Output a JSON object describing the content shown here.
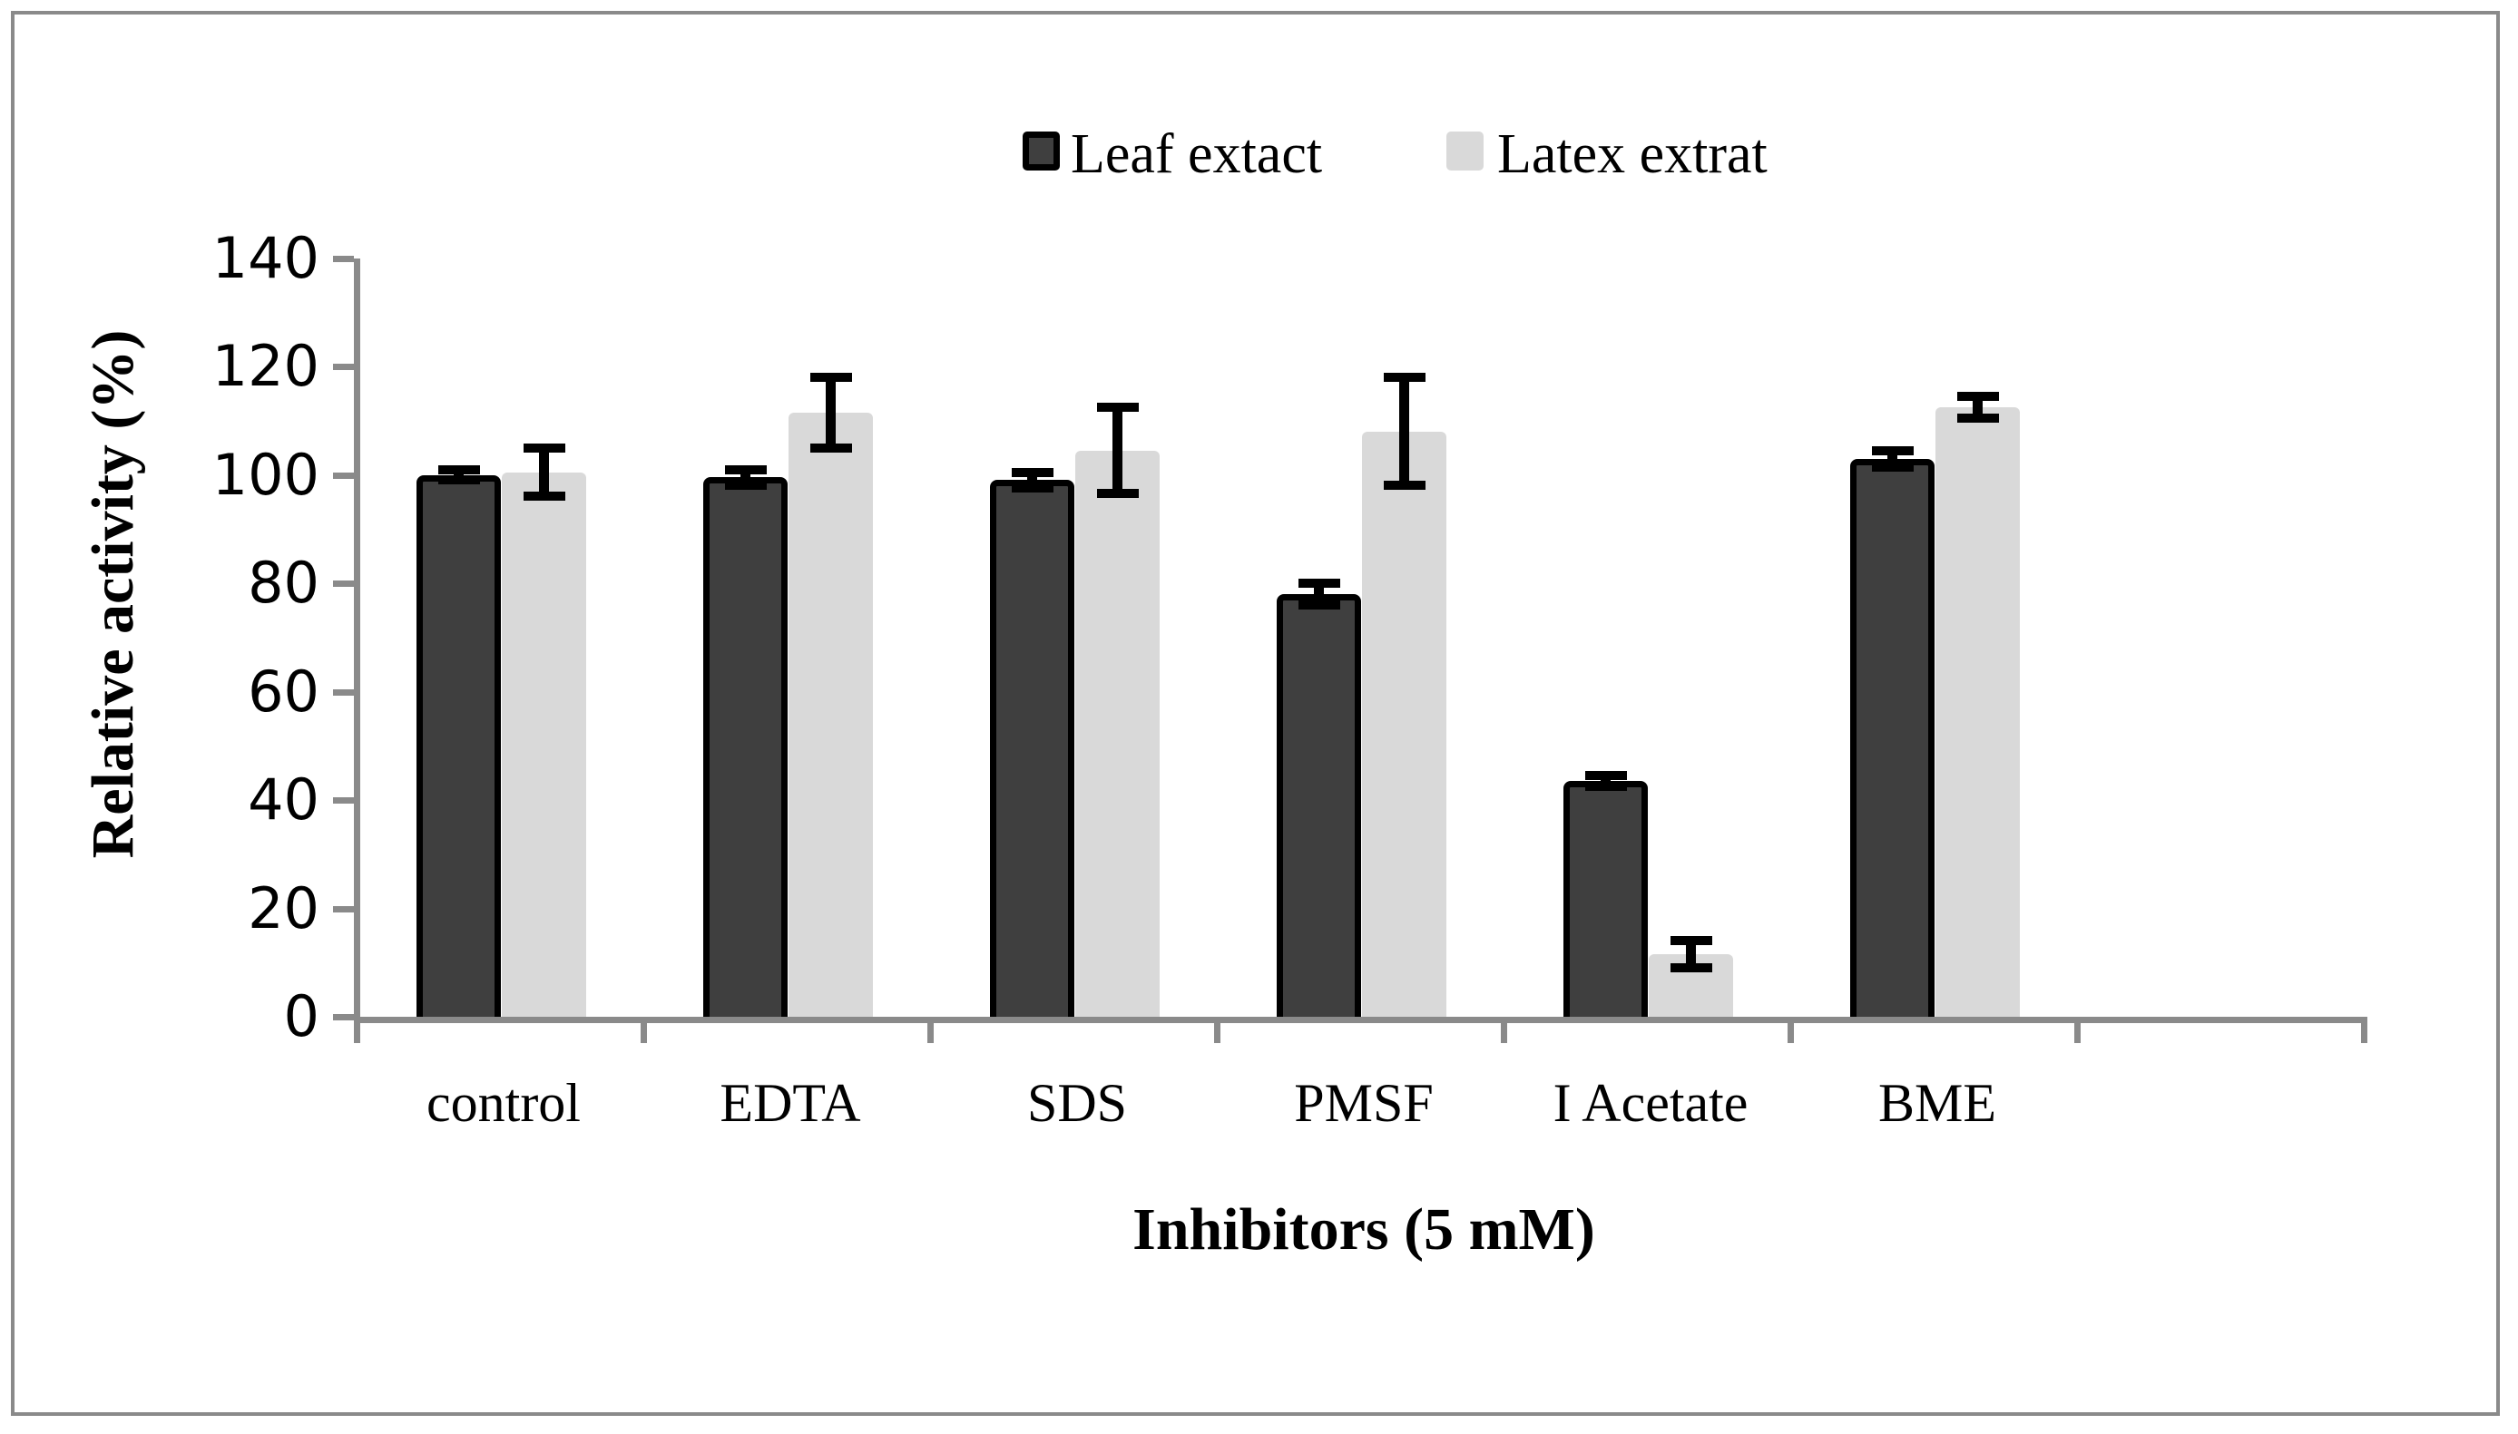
{
  "figure": {
    "background": "#ffffff",
    "border_color": "#8a8a8a"
  },
  "chart_data": {
    "type": "bar",
    "title": "",
    "xlabel": "Inhibitors (5 mM)",
    "ylabel": "Relative activity (%)",
    "categories": [
      "control",
      "EDTA",
      "SDS",
      "PMSF",
      "I Acetate",
      "BME"
    ],
    "y_ticks": [
      0,
      20,
      40,
      60,
      80,
      100,
      120,
      140
    ],
    "ylim": [
      0,
      140
    ],
    "grid": false,
    "legend_position": "top",
    "axis_color": "#8a8a8a",
    "error_bar_color": "#000000",
    "series": [
      {
        "name": "Leaf extact",
        "color": "#3f3f3f",
        "border_color": "#000000",
        "values": [
          100,
          99.5,
          99,
          78,
          43.5,
          103
        ],
        "errors": [
          1,
          1.5,
          1.5,
          2,
          1,
          1.5
        ]
      },
      {
        "name": "Latex extrat",
        "color": "#d9d9d9",
        "border_color": "#d9d9d9",
        "values": [
          100.5,
          111.5,
          104.5,
          108,
          11.5,
          112.5
        ],
        "errors": [
          4.5,
          6.5,
          8,
          10,
          2.5,
          2
        ]
      }
    ]
  }
}
